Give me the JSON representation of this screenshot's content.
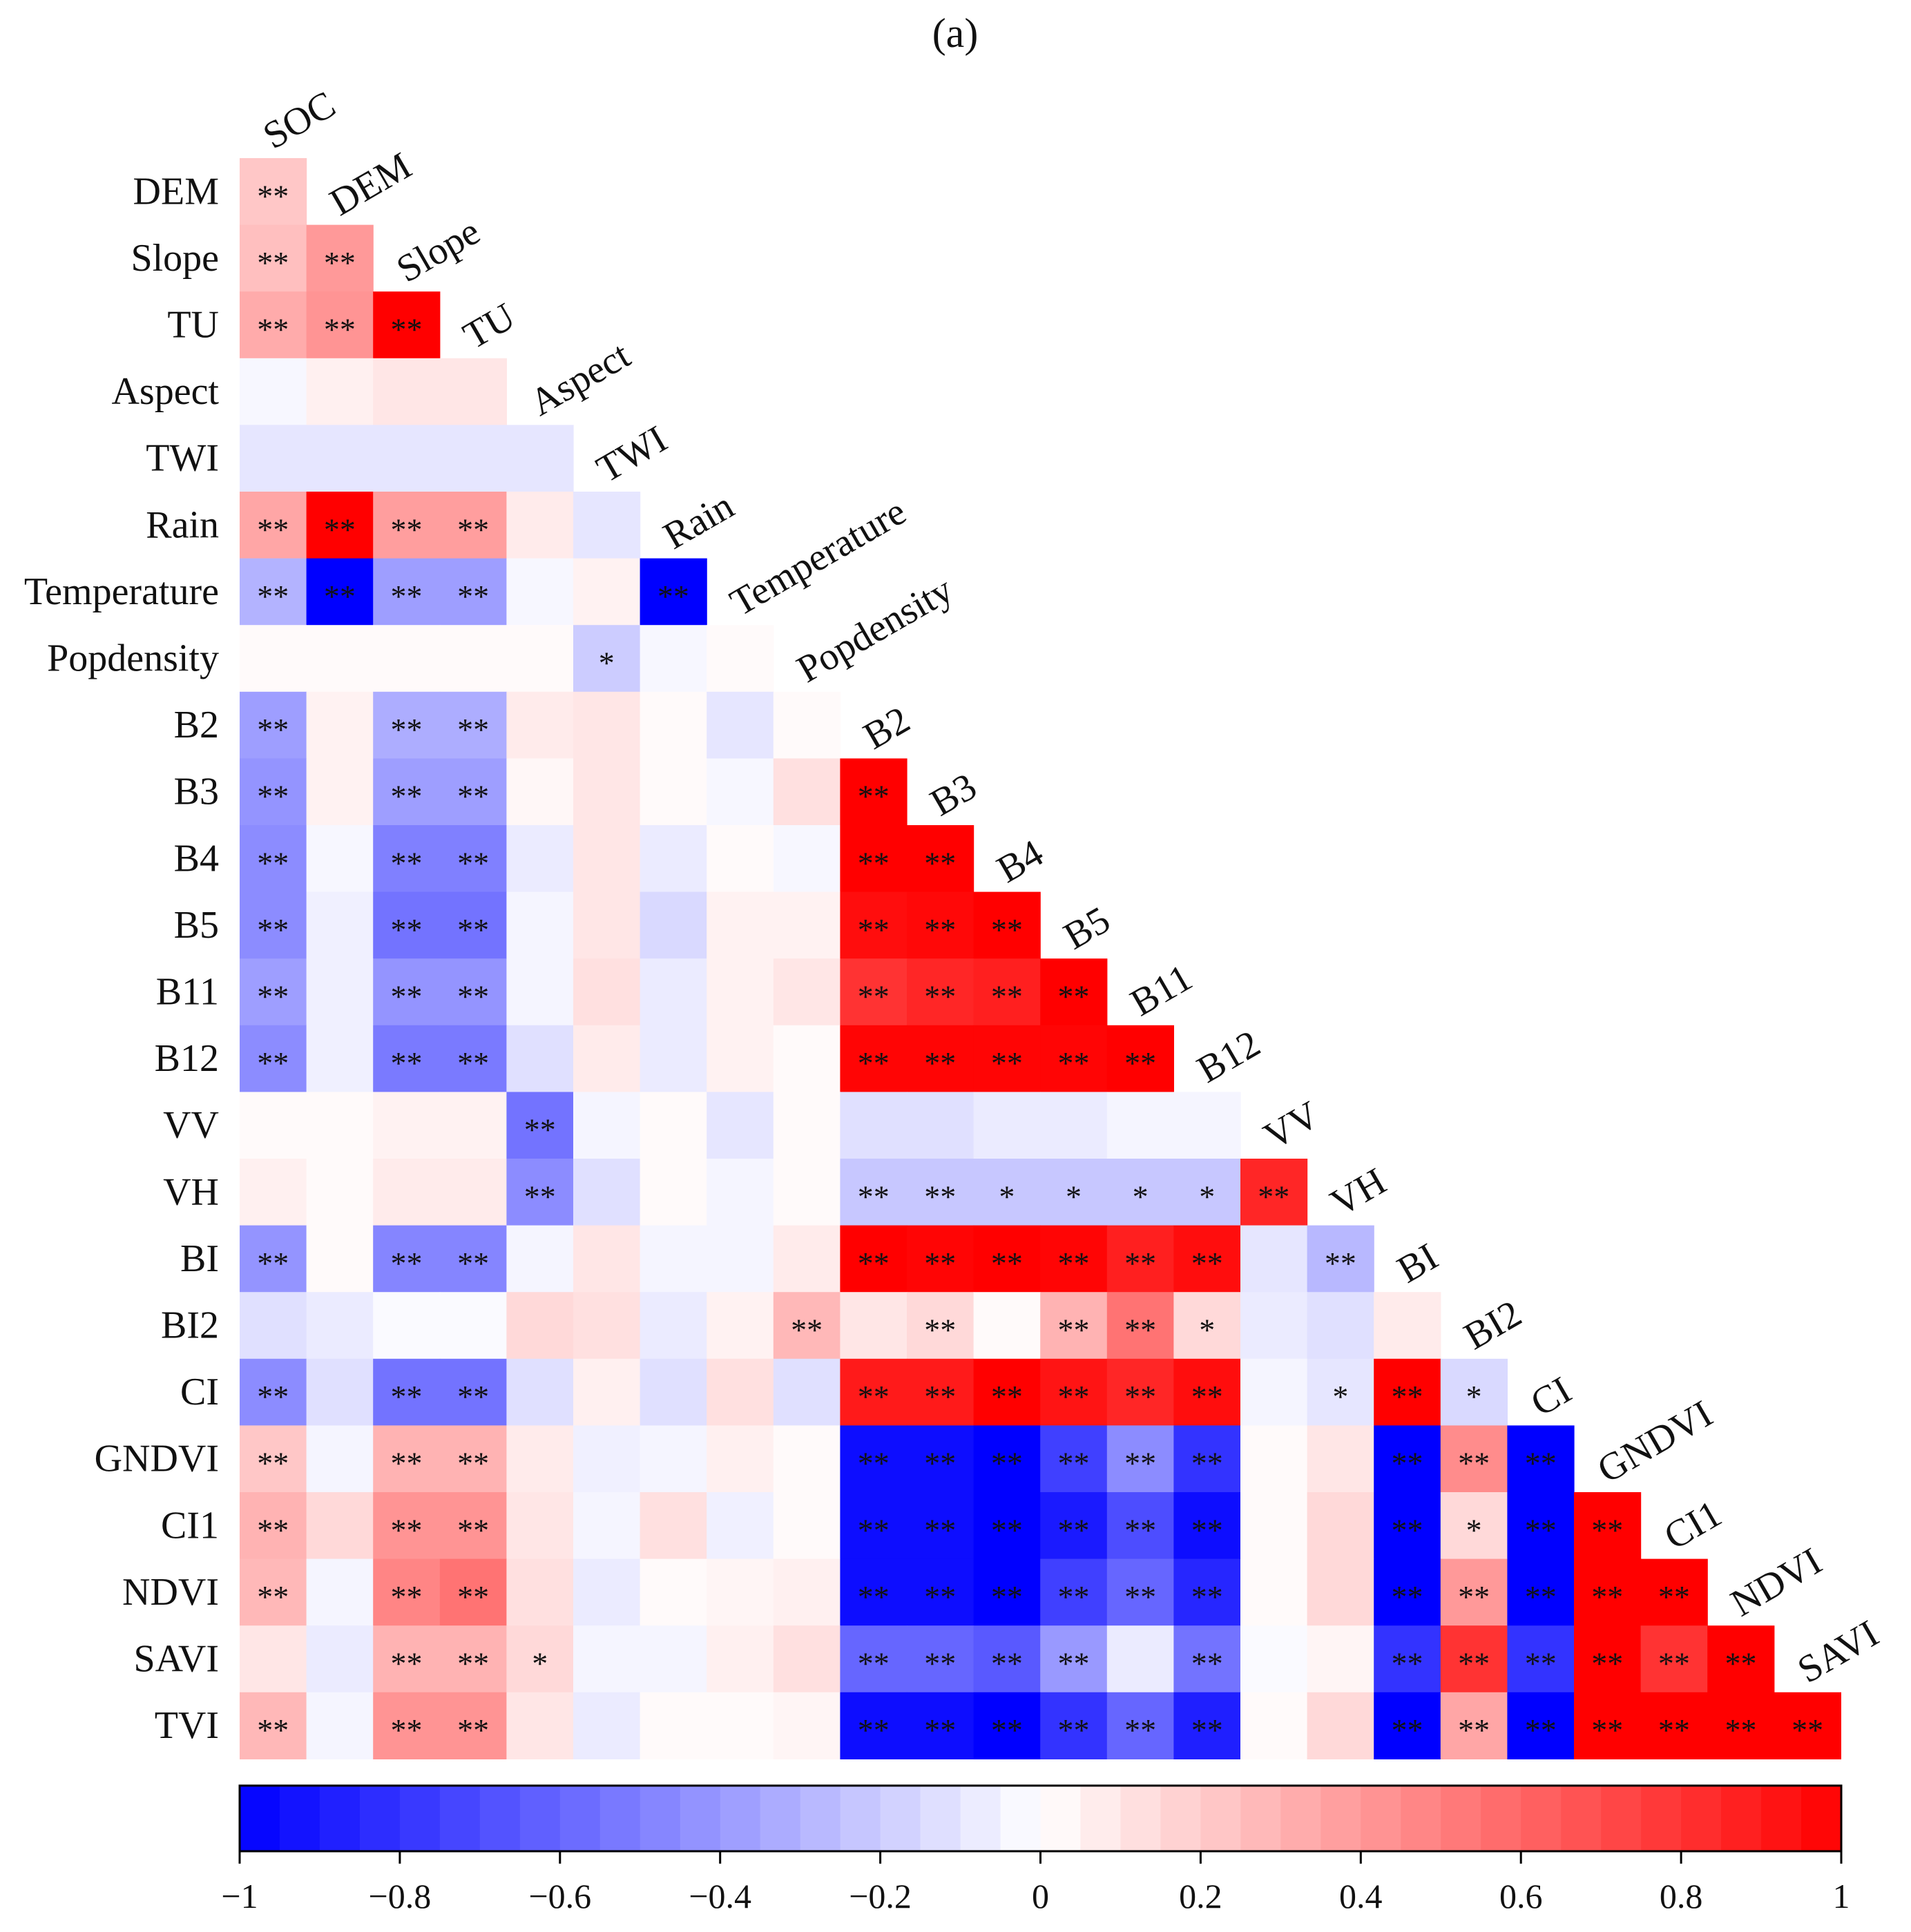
{
  "panel_label": "(a)",
  "chart_data": {
    "type": "heatmap",
    "variables": [
      "SOC",
      "DEM",
      "Slope",
      "TU",
      "Aspect",
      "TWI",
      "Rain",
      "Temperature",
      "Popdensity",
      "B2",
      "B3",
      "B4",
      "B5",
      "B11",
      "B12",
      "VV",
      "VH",
      "BI",
      "BI2",
      "CI",
      "GNDVI",
      "CI1",
      "NDVI",
      "SAVI",
      "TVI"
    ],
    "row_labels": [
      "DEM",
      "Slope",
      "TU",
      "Aspect",
      "TWI",
      "Rain",
      "Temperature",
      "Popdensity",
      "B2",
      "B3",
      "B4",
      "B5",
      "B11",
      "B12",
      "VV",
      "VH",
      "BI",
      "BI2",
      "CI",
      "GNDVI",
      "CI1",
      "NDVI",
      "SAVI",
      "TVI"
    ],
    "column_labels": [
      "SOC",
      "DEM",
      "Slope",
      "TU",
      "Aspect",
      "TWI",
      "Rain",
      "Temperature",
      "Popdensity",
      "B2",
      "B3",
      "B4",
      "B5",
      "B11",
      "B12",
      "VV",
      "VH",
      "BI",
      "BI2",
      "CI",
      "GNDVI",
      "CI1",
      "NDVI",
      "SAVI"
    ],
    "values": [
      [
        0.22
      ],
      [
        0.25,
        0.4
      ],
      [
        0.33,
        0.42,
        1.0
      ],
      [
        -0.03,
        0.06,
        0.1,
        0.1
      ],
      [
        -0.1,
        -0.1,
        -0.1,
        -0.1,
        -0.1
      ],
      [
        0.35,
        1.0,
        0.38,
        0.38,
        0.08,
        -0.1
      ],
      [
        -0.3,
        -1.0,
        -0.38,
        -0.38,
        -0.03,
        0.05,
        -1.0
      ],
      [
        0.02,
        0.02,
        0.02,
        0.02,
        0.02,
        -0.2,
        -0.03,
        0.02
      ],
      [
        -0.38,
        0.05,
        -0.32,
        -0.32,
        0.08,
        0.1,
        0.02,
        -0.1,
        0.02
      ],
      [
        -0.42,
        0.05,
        -0.38,
        -0.38,
        0.03,
        0.1,
        0.02,
        -0.03,
        0.12,
        1.0
      ],
      [
        -0.45,
        -0.03,
        -0.5,
        -0.5,
        -0.08,
        0.1,
        -0.08,
        0.02,
        -0.03,
        1.0,
        1.0
      ],
      [
        -0.45,
        -0.06,
        -0.55,
        -0.55,
        -0.04,
        0.1,
        -0.15,
        0.05,
        0.05,
        0.95,
        0.97,
        1.0
      ],
      [
        -0.38,
        -0.06,
        -0.42,
        -0.42,
        -0.04,
        0.12,
        -0.08,
        0.05,
        0.1,
        0.8,
        0.85,
        0.88,
        1.0
      ],
      [
        -0.45,
        -0.06,
        -0.52,
        -0.52,
        -0.12,
        0.08,
        -0.08,
        0.05,
        0.02,
        0.98,
        0.98,
        0.98,
        0.98,
        1.0
      ],
      [
        0.02,
        0.02,
        0.05,
        0.05,
        -0.55,
        -0.04,
        0.02,
        -0.1,
        0.02,
        -0.12,
        -0.12,
        -0.08,
        -0.08,
        -0.04,
        -0.04
      ],
      [
        0.06,
        0.02,
        0.08,
        0.08,
        -0.45,
        -0.12,
        0.02,
        -0.04,
        0.02,
        -0.22,
        -0.22,
        -0.22,
        -0.22,
        -0.22,
        -0.22,
        0.85
      ],
      [
        -0.42,
        0.02,
        -0.48,
        -0.48,
        -0.04,
        0.1,
        -0.04,
        -0.04,
        0.08,
        1.0,
        0.98,
        1.0,
        0.98,
        0.88,
        0.95,
        -0.1,
        -0.28
      ],
      [
        -0.12,
        -0.08,
        -0.02,
        -0.02,
        0.15,
        0.12,
        -0.08,
        0.05,
        0.28,
        0.1,
        0.15,
        0.02,
        0.3,
        0.55,
        0.15,
        -0.08,
        -0.12,
        0.08
      ],
      [
        -0.45,
        -0.12,
        -0.55,
        -0.55,
        -0.12,
        0.06,
        -0.12,
        0.12,
        -0.12,
        0.9,
        0.9,
        1.0,
        0.92,
        0.85,
        0.95,
        -0.04,
        -0.1,
        1.0,
        -0.15
      ],
      [
        0.22,
        -0.04,
        0.3,
        0.3,
        0.08,
        -0.06,
        -0.04,
        0.06,
        0.02,
        -0.95,
        -0.95,
        -1.0,
        -0.75,
        -0.45,
        -0.8,
        0.02,
        0.1,
        -1.0,
        0.45,
        -1.0
      ],
      [
        0.3,
        0.15,
        0.42,
        0.42,
        0.1,
        -0.04,
        0.12,
        -0.06,
        0.02,
        -0.95,
        -0.95,
        -1.0,
        -0.9,
        -0.7,
        -0.95,
        0.02,
        0.15,
        -1.0,
        0.15,
        -1.0,
        1.0
      ],
      [
        0.28,
        -0.04,
        0.48,
        0.55,
        0.12,
        -0.08,
        0.02,
        0.04,
        0.06,
        -0.95,
        -0.95,
        -1.0,
        -0.75,
        -0.6,
        -0.85,
        0.02,
        0.15,
        -1.0,
        0.4,
        -1.0,
        1.0,
        1.0
      ],
      [
        0.1,
        -0.08,
        0.3,
        0.3,
        0.15,
        -0.04,
        -0.04,
        0.06,
        0.12,
        -0.6,
        -0.6,
        -0.65,
        -0.4,
        -0.08,
        -0.55,
        -0.02,
        0.04,
        -0.8,
        0.8,
        -0.8,
        1.0,
        0.8,
        1.0
      ],
      [
        0.28,
        -0.04,
        0.42,
        0.42,
        0.1,
        -0.08,
        0.02,
        0.02,
        0.04,
        -0.95,
        -0.95,
        -1.0,
        -0.8,
        -0.6,
        -0.88,
        0.02,
        0.15,
        -1.0,
        0.35,
        -1.0,
        1.0,
        1.0,
        1.0,
        1.0
      ]
    ],
    "significance": [
      [
        "**"
      ],
      [
        "**",
        "**"
      ],
      [
        "**",
        "**",
        "**"
      ],
      [
        "",
        "",
        "",
        ""
      ],
      [
        "",
        "",
        "",
        "",
        ""
      ],
      [
        "**",
        "**",
        "**",
        "**",
        "",
        ""
      ],
      [
        "**",
        "**",
        "**",
        "**",
        "",
        "",
        "**"
      ],
      [
        "",
        "",
        "",
        "",
        "",
        "*",
        "",
        ""
      ],
      [
        "**",
        "",
        "**",
        "**",
        "",
        "",
        "",
        "",
        ""
      ],
      [
        "**",
        "",
        "**",
        "**",
        "",
        "",
        "",
        "",
        "",
        "**"
      ],
      [
        "**",
        "",
        "**",
        "**",
        "",
        "",
        "",
        "",
        "",
        "**",
        "**"
      ],
      [
        "**",
        "",
        "**",
        "**",
        "",
        "",
        "",
        "",
        "",
        "**",
        "**",
        "**"
      ],
      [
        "**",
        "",
        "**",
        "**",
        "",
        "",
        "",
        "",
        "",
        "**",
        "**",
        "**",
        "**"
      ],
      [
        "**",
        "",
        "**",
        "**",
        "",
        "",
        "",
        "",
        "",
        "**",
        "**",
        "**",
        "**",
        "**"
      ],
      [
        "",
        "",
        "",
        "",
        "**",
        "",
        "",
        "",
        "",
        "",
        "",
        "",
        "",
        "",
        ""
      ],
      [
        "",
        "",
        "",
        "",
        "**",
        "",
        "",
        "",
        "",
        "**",
        "**",
        "*",
        "*",
        "*",
        "*",
        "**"
      ],
      [
        "**",
        "",
        "**",
        "**",
        "",
        "",
        "",
        "",
        "",
        "**",
        "**",
        "**",
        "**",
        "**",
        "**",
        "",
        "**"
      ],
      [
        "",
        "",
        "",
        "",
        "",
        "",
        "",
        "",
        "**",
        "",
        "**",
        "",
        "**",
        "**",
        "*",
        "",
        "",
        ""
      ],
      [
        "**",
        "",
        "**",
        "**",
        "",
        "",
        "",
        "",
        "",
        "**",
        "**",
        "**",
        "**",
        "**",
        "**",
        "",
        "*",
        "**",
        "*"
      ],
      [
        "**",
        "",
        "**",
        "**",
        "",
        "",
        "",
        "",
        "",
        "**",
        "**",
        "**",
        "**",
        "**",
        "**",
        "",
        "",
        "**",
        "**",
        "**"
      ],
      [
        "**",
        "",
        "**",
        "**",
        "",
        "",
        "",
        "",
        "",
        "**",
        "**",
        "**",
        "**",
        "**",
        "**",
        "",
        "",
        "**",
        "*",
        "**",
        "**"
      ],
      [
        "**",
        "",
        "**",
        "**",
        "",
        "",
        "",
        "",
        "",
        "**",
        "**",
        "**",
        "**",
        "**",
        "**",
        "",
        "",
        "**",
        "**",
        "**",
        "**",
        "**"
      ],
      [
        "",
        "",
        "**",
        "**",
        "*",
        "",
        "",
        "",
        "",
        "**",
        "**",
        "**",
        "**",
        "",
        "**",
        "",
        "",
        "**",
        "**",
        "**",
        "**",
        "**",
        "**"
      ],
      [
        "**",
        "",
        "**",
        "**",
        "",
        "",
        "",
        "",
        "",
        "**",
        "**",
        "**",
        "**",
        "**",
        "**",
        "",
        "",
        "**",
        "**",
        "**",
        "**",
        "**",
        "**",
        "**"
      ]
    ],
    "colorbar": {
      "min": -1,
      "max": 1,
      "low_color": "#0000ff",
      "mid_color": "#ffffff",
      "high_color": "#ff0000",
      "ticks": [
        "−1",
        "−0.8",
        "−0.6",
        "−0.4",
        "−0.2",
        "0",
        "0.2",
        "0.4",
        "0.6",
        "0.8",
        "1"
      ]
    }
  }
}
